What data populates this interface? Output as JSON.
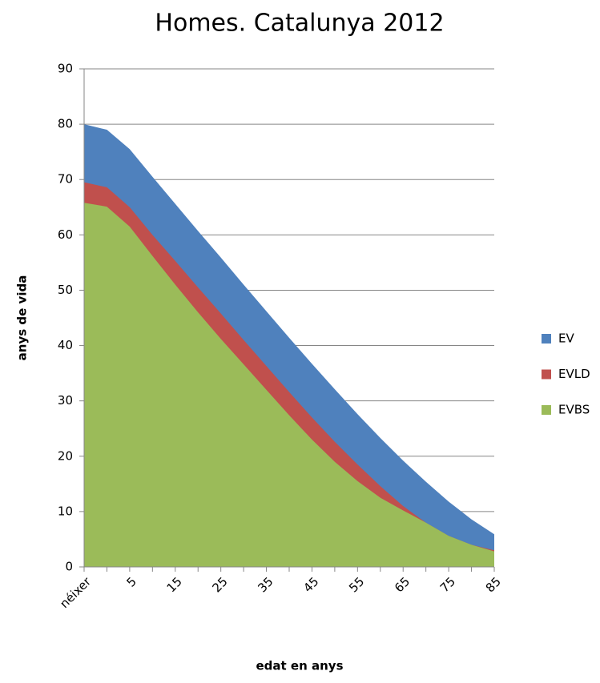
{
  "chart_data": {
    "type": "area",
    "title": "Homes. Catalunya 2012",
    "x_label": "edat en anys",
    "y_label": "anys de vida",
    "categories": [
      "néixer",
      null,
      "5",
      null,
      "15",
      null,
      "25",
      null,
      "35",
      null,
      "45",
      null,
      "55",
      null,
      "65",
      null,
      "75",
      null,
      "85"
    ],
    "series": [
      {
        "name": "EV",
        "color": "#4f81bd",
        "values": [
          80,
          79,
          75.5,
          70.5,
          65.6,
          60.7,
          55.9,
          51,
          46.2,
          41.4,
          36.7,
          32.1,
          27.6,
          23.3,
          19.2,
          15.4,
          11.8,
          8.6,
          5.9
        ]
      },
      {
        "name": "EVLD",
        "color": "#c0504d",
        "values": [
          69.5,
          68.6,
          65,
          60,
          55.3,
          50.5,
          45.8,
          41,
          36.3,
          31.6,
          27,
          22.6,
          18.5,
          14.6,
          11,
          8,
          5.6,
          4,
          3
        ]
      },
      {
        "name": "EVBS",
        "color": "#9bbb59",
        "values": [
          65.8,
          65.1,
          61.5,
          56.2,
          51,
          46,
          41.2,
          36.6,
          32,
          27.4,
          23,
          19,
          15.5,
          12.5,
          10.2,
          8,
          5.6,
          4,
          2.8
        ]
      }
    ],
    "ylim": [
      0,
      90
    ],
    "yticks": [
      0,
      10,
      20,
      30,
      40,
      50,
      60,
      70,
      80,
      90
    ],
    "grid": true,
    "legend": "right"
  }
}
